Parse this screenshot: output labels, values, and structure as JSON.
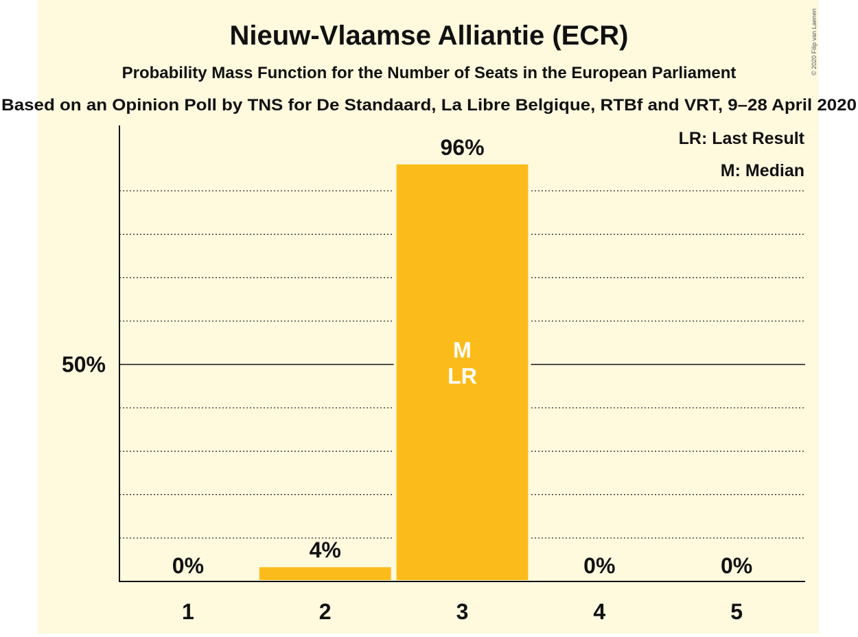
{
  "chart_data": {
    "type": "bar",
    "title": "Nieuw-Vlaamse Alliantie (ECR)",
    "subtitle": "Probability Mass Function for the Number of Seats in the European Parliament",
    "source_line": "Based on an Opinion Poll by TNS for De Standaard, La Libre Belgique, RTBf and VRT, 9–28 April 2020",
    "copyright": "© 2020 Filip van Laenen",
    "categories": [
      "1",
      "2",
      "3",
      "4",
      "5"
    ],
    "values": [
      0,
      3.6,
      96.4,
      0,
      0
    ],
    "value_labels": [
      "0%",
      "4%",
      "96%",
      "0%",
      "0%"
    ],
    "bar_color": "#FBBC1B",
    "background_color": "#FFF9DE",
    "ylim": [
      0,
      105
    ],
    "y_tick_label": "50%",
    "y_tick_value": 50,
    "grid": true,
    "gridline_step": 10,
    "median_category": "3",
    "last_result_category": "3",
    "median_marker": "M",
    "last_result_marker": "LR",
    "legend": {
      "position": "top-right",
      "entries": [
        "LR: Last Result",
        "M: Median"
      ]
    }
  }
}
